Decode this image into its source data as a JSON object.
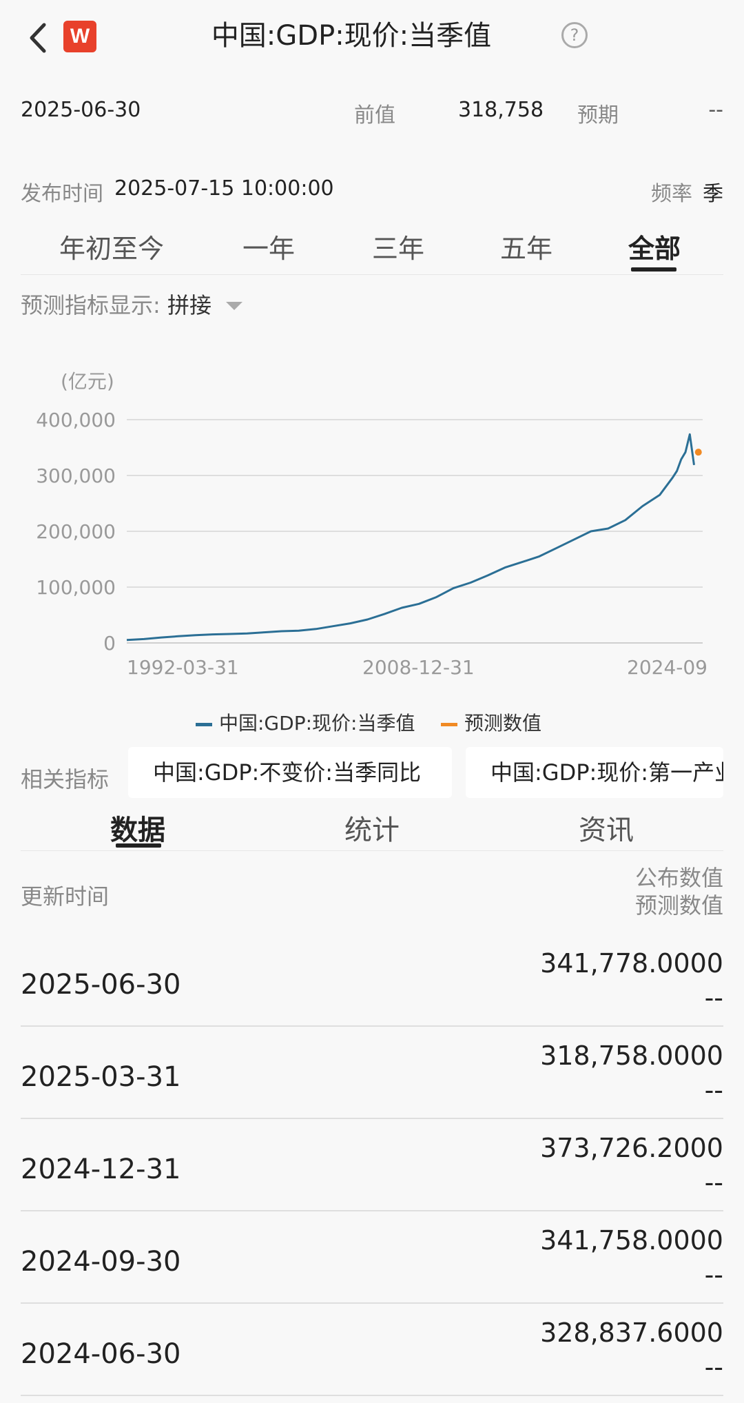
{
  "header": {
    "logo_text": "W",
    "title": "中国:GDP:现价:当季值",
    "help": "?"
  },
  "summary": {
    "date": "2025-06-30",
    "prev_label": "前值",
    "prev_value": "318,758",
    "expected_label": "预期",
    "expected_value": "--",
    "release_label": "发布时间",
    "release_value": "2025-07-15 10:00:00",
    "freq_label": "频率",
    "freq_value": "季"
  },
  "range_tabs": [
    "年初至今",
    "一年",
    "三年",
    "五年",
    "全部"
  ],
  "active_range": "全部",
  "forecast_display": {
    "label": "预测指标显示:",
    "value": "拼接"
  },
  "chart_data": {
    "type": "line",
    "unit_label": "(亿元)",
    "ylim": [
      0,
      400000
    ],
    "y_ticks": [
      "400,000",
      "300,000",
      "200,000",
      "100,000",
      "0"
    ],
    "x_tick_labels": [
      "1992-03-31",
      "2008-12-31",
      "2024-09"
    ],
    "grid": true,
    "legend_position": "bottom",
    "series": [
      {
        "name": "中国:GDP:现价:当季值",
        "color": "#2b6f95",
        "x": [
          1992.25,
          1993.25,
          1994.25,
          1995.25,
          1996.25,
          1997.25,
          1998.25,
          1999.25,
          2000.25,
          2001.25,
          2002.25,
          2003.25,
          2004.25,
          2005.25,
          2006.25,
          2007.25,
          2008.25,
          2009.25,
          2010.25,
          2011.25,
          2012.25,
          2013.25,
          2014.25,
          2015.25,
          2016.25,
          2017.25,
          2018.25,
          2019.25,
          2020.25,
          2021.25,
          2022.25,
          2023.25,
          2024.0,
          2024.25,
          2024.5,
          2024.75,
          2025.0,
          2025.25
        ],
        "values": [
          5300,
          6900,
          9700,
          12000,
          14000,
          15300,
          16000,
          17000,
          19000,
          21000,
          22000,
          25000,
          30000,
          35000,
          42000,
          52000,
          63000,
          70000,
          82000,
          98000,
          108000,
          121000,
          135000,
          145000,
          155000,
          170000,
          185000,
          200000,
          205000,
          220000,
          245000,
          265000,
          296000,
          308000,
          328838,
          341758,
          373726,
          318758
        ]
      },
      {
        "name": "预测数值",
        "color": "#f08a24",
        "x": [
          2025.5
        ],
        "values": [
          341778
        ]
      }
    ]
  },
  "related": {
    "label": "相关指标",
    "items": [
      "中国:GDP:不变价:当季同比",
      "中国:GDP:现价:第一产业"
    ]
  },
  "bottom_tabs": [
    "数据",
    "统计",
    "资讯"
  ],
  "active_bottom_tab": "数据",
  "table": {
    "col_left": "更新时间",
    "col_right_1": "公布数值",
    "col_right_2": "预测数值",
    "rows": [
      {
        "date": "2025-06-30",
        "published": "341,778.0000",
        "forecast": "--"
      },
      {
        "date": "2025-03-31",
        "published": "318,758.0000",
        "forecast": "--"
      },
      {
        "date": "2024-12-31",
        "published": "373,726.2000",
        "forecast": "--"
      },
      {
        "date": "2024-09-30",
        "published": "341,758.0000",
        "forecast": "--"
      },
      {
        "date": "2024-06-30",
        "published": "328,837.6000",
        "forecast": "--"
      }
    ]
  }
}
